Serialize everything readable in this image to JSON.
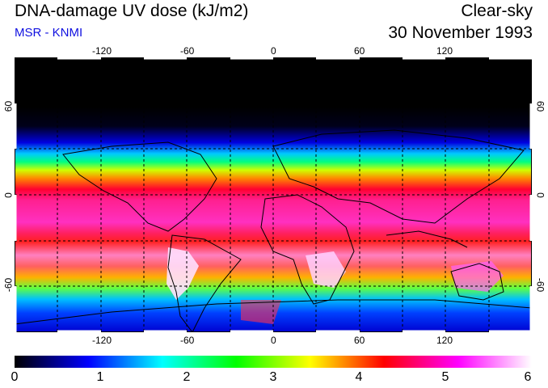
{
  "title": "DNA-damage UV dose (kJ/m2)",
  "source": "MSR - KNMI",
  "condition": "Clear-sky",
  "date": "30 November 1993",
  "map": {
    "longitude_ticks": [
      "-120",
      "-60",
      "0",
      "60",
      "120"
    ],
    "latitude_ticks": [
      "60",
      "0",
      "-60"
    ]
  },
  "colorbar": {
    "min": 0,
    "max": 6,
    "labels": [
      "0",
      "1",
      "2",
      "3",
      "4",
      "5",
      "6"
    ],
    "colors": [
      "#000000",
      "#0000ff",
      "#00ffff",
      "#00ff00",
      "#ffff00",
      "#ff0000",
      "#ff00ff",
      "#ffffff"
    ]
  }
}
